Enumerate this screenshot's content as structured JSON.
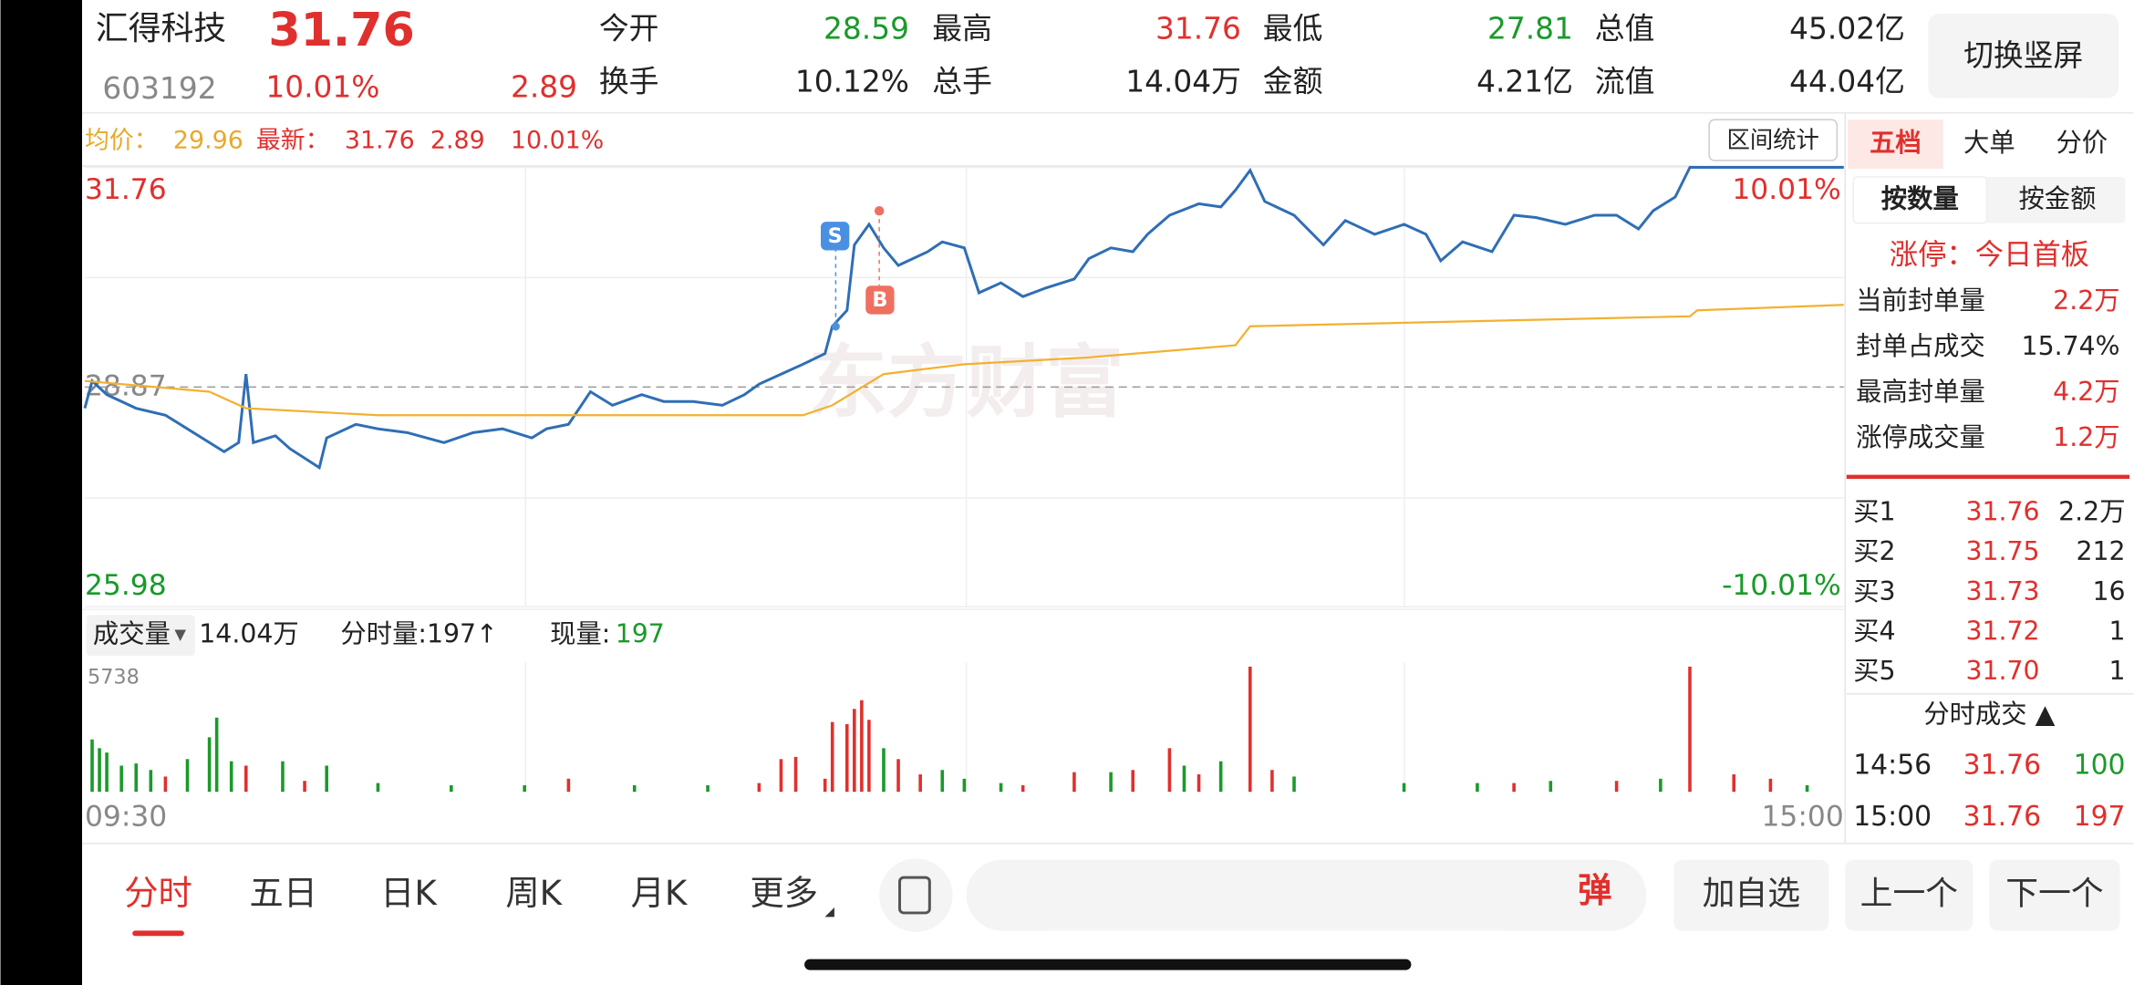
{
  "header": {
    "name": "汇得科技",
    "price": "31.76",
    "code": "603192",
    "change_pct": "10.01%",
    "change": "2.89",
    "stats": [
      [
        {
          "label": "今开",
          "value": "28.59"
        },
        {
          "label": "最高",
          "value": "31.76"
        },
        {
          "label": "最低",
          "value": "27.81"
        },
        {
          "label": "总值",
          "value": "45.02亿"
        }
      ],
      [
        {
          "label": "换手",
          "value": "10.12%"
        },
        {
          "label": "总手",
          "value": "14.04万"
        },
        {
          "label": "金额",
          "value": "4.21亿"
        },
        {
          "label": "流值",
          "value": "44.04亿"
        }
      ]
    ],
    "button": "切换竖屏"
  },
  "info": {
    "avg_label": "均价：",
    "avg": "29.96",
    "last_label": "最新：",
    "last": "31.76",
    "change": "2.89",
    "change_pct": "10.01%",
    "range_button": "区间统计",
    "watermark": "东方财富",
    "sell_marker": "S",
    "buy_marker": "B"
  },
  "chart_data": [
    {
      "type": "line",
      "ylim": [
        25.98,
        31.76
      ],
      "yticks": [
        31.76,
        28.87,
        25.98
      ],
      "y2lim": [
        -10.01,
        10.01
      ],
      "y2ticks": [
        {
          "value": 10.01,
          "label": "10.01%"
        },
        {
          "value": -10.01,
          "label": "-10.01%"
        }
      ],
      "xlim": [
        0,
        240
      ],
      "series": [
        {
          "color": "#2f6eb5",
          "x": [
            0,
            1,
            3,
            7,
            11,
            14,
            17,
            19,
            21,
            22,
            23,
            26,
            28,
            32,
            33,
            37,
            40,
            44,
            49,
            53,
            57,
            61,
            63,
            66,
            69,
            72,
            76,
            79,
            83,
            87,
            90,
            92,
            95,
            98,
            101,
            102,
            104,
            105,
            107,
            109,
            111,
            115,
            117,
            120,
            122,
            125,
            128,
            131,
            135,
            137,
            140,
            143,
            145,
            148,
            152,
            155,
            157,
            159,
            161,
            165,
            169,
            172,
            176,
            180,
            183,
            185,
            188,
            192,
            195,
            198,
            202,
            206,
            209,
            212,
            214,
            217,
            219,
            240
          ],
          "values": [
            28.59,
            28.95,
            28.77,
            28.59,
            28.5,
            28.32,
            28.14,
            28.02,
            28.14,
            29.04,
            28.14,
            28.23,
            28.06,
            27.81,
            28.2,
            28.38,
            28.32,
            28.27,
            28.14,
            28.27,
            28.32,
            28.2,
            28.32,
            28.38,
            28.81,
            28.63,
            28.77,
            28.68,
            28.68,
            28.63,
            28.77,
            28.91,
            29.04,
            29.17,
            29.31,
            29.67,
            29.88,
            30.74,
            31.01,
            30.7,
            30.47,
            30.65,
            30.78,
            30.7,
            30.11,
            30.24,
            30.06,
            30.17,
            30.29,
            30.56,
            30.7,
            30.65,
            30.88,
            31.13,
            31.28,
            31.24,
            31.46,
            31.72,
            31.31,
            31.13,
            30.74,
            31.06,
            30.88,
            31.01,
            30.88,
            30.53,
            30.78,
            30.65,
            31.13,
            31.1,
            31.01,
            31.13,
            31.13,
            30.95,
            31.19,
            31.37,
            31.76,
            31.76
          ]
        },
        {
          "color": "#f2b130",
          "x": [
            0,
            17,
            22,
            40,
            98,
            102,
            109,
            120,
            137,
            157,
            159,
            219,
            220,
            240
          ],
          "values": [
            28.95,
            28.81,
            28.59,
            28.5,
            28.5,
            28.63,
            29.04,
            29.17,
            29.26,
            29.42,
            29.67,
            29.8,
            29.88,
            29.95
          ]
        }
      ]
    },
    {
      "type": "bar",
      "title": "成交量",
      "total": "14.04万",
      "minute_volume": "分时量:197↑",
      "current_label": "现量:",
      "current": "197",
      "ylim": [
        0,
        5738
      ],
      "yticks": [
        5738
      ],
      "xlim": [
        0,
        240
      ],
      "xticks": [
        {
          "value": 0,
          "label": "09:30"
        },
        {
          "value": 240,
          "label": "15:00"
        }
      ],
      "series": [
        {
          "color": "#e0302d",
          "x": [
            11,
            22,
            30,
            66,
            92,
            95,
            97,
            101,
            102,
            104,
            105,
            106,
            107,
            111,
            114,
            128,
            135,
            143,
            148,
            152,
            159,
            162,
            195,
            209,
            219,
            225,
            230
          ],
          "values": [
            700,
            1200,
            500,
            600,
            400,
            1500,
            1600,
            600,
            3200,
            3100,
            3800,
            4200,
            3300,
            1500,
            800,
            300,
            900,
            1000,
            2000,
            800,
            5738,
            1000,
            400,
            500,
            5738,
            800,
            600
          ]
        },
        {
          "color": "#1a9a2a",
          "x": [
            1,
            2,
            3,
            5,
            7,
            9,
            14,
            17,
            18,
            20,
            27,
            33,
            40,
            50,
            60,
            75,
            85,
            109,
            117,
            120,
            125,
            140,
            150,
            155,
            165,
            180,
            190,
            200,
            215,
            235
          ],
          "values": [
            2400,
            2000,
            1800,
            1200,
            1300,
            1000,
            1500,
            2500,
            3400,
            1400,
            1400,
            1200,
            400,
            300,
            300,
            300,
            300,
            2000,
            1000,
            600,
            400,
            900,
            1200,
            1400,
            700,
            400,
            400,
            500,
            600,
            300
          ]
        }
      ]
    }
  ],
  "side": {
    "tabs": [
      "五档",
      "大单",
      "分价"
    ],
    "modes": [
      "按数量",
      "按金额"
    ],
    "limit_up": "涨停：今日首板",
    "seal": [
      {
        "label": "当前封单量",
        "value": "2.2万"
      },
      {
        "label": "封单占成交",
        "value": "15.74%"
      },
      {
        "label": "最高封单量",
        "value": "4.2万"
      },
      {
        "label": "涨停成交量",
        "value": "1.2万"
      }
    ],
    "bids": [
      {
        "label": "买1",
        "price": "31.76",
        "qty": "2.2万"
      },
      {
        "label": "买2",
        "price": "31.75",
        "qty": "212"
      },
      {
        "label": "买3",
        "price": "31.73",
        "qty": "16"
      },
      {
        "label": "买4",
        "price": "31.72",
        "qty": "1"
      },
      {
        "label": "买5",
        "price": "31.70",
        "qty": "1"
      }
    ],
    "trades_title": "分时成交 ▲",
    "trades": [
      {
        "time": "14:56",
        "price": "31.76",
        "qty": "100"
      },
      {
        "time": "15:00",
        "price": "31.76",
        "qty": "197"
      }
    ]
  },
  "footer": {
    "tabs": [
      "分时",
      "五日",
      "日K",
      "周K",
      "月K",
      "更多"
    ],
    "danmu": "弹",
    "buttons": [
      "加自选",
      "上一个",
      "下一个"
    ]
  }
}
